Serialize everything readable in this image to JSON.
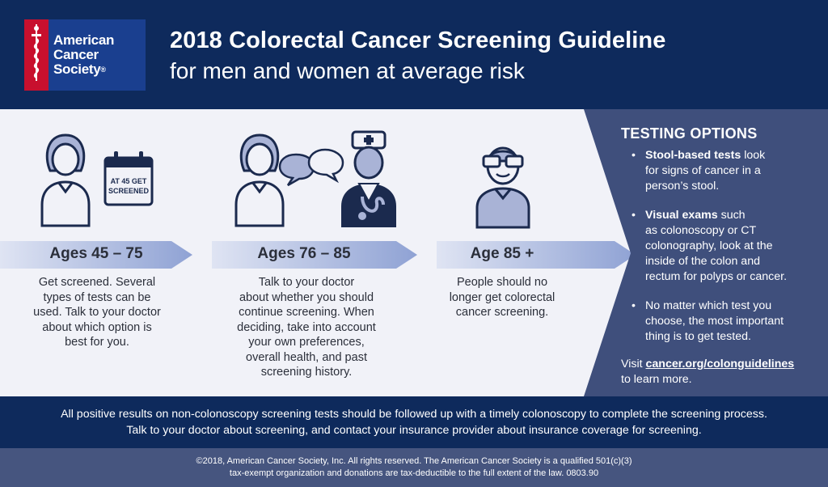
{
  "brand": {
    "name_line1": "American",
    "name_line2": "Cancer",
    "name_line3": "Society",
    "registered": "®"
  },
  "header": {
    "title": "2018 Colorectal Cancer Screening Guideline",
    "subtitle": "for men and women at average risk"
  },
  "stages": [
    {
      "age": "Ages 45 – 75",
      "calendar_text_1": "AT 45 GET",
      "calendar_text_2": "SCREENED",
      "desc_lines": [
        "Get screened. Several",
        "types of tests can be",
        "used. Talk to your doctor",
        "about which option is",
        "best for you."
      ]
    },
    {
      "age": "Ages 76 – 85",
      "desc_lines": [
        "Talk to your doctor",
        "about whether you should",
        "continue screening. When",
        "deciding, take into account",
        "your own preferences,",
        "overall health, and past",
        "screening history."
      ]
    },
    {
      "age": "Age 85 +",
      "desc_lines": [
        "People should no",
        "longer get colorectal",
        "cancer screening."
      ]
    }
  ],
  "testing_options": {
    "title": "TESTING OPTIONS",
    "items": [
      {
        "bold": "Stool-based tests",
        "text_1": " look",
        "text_2": "for signs of cancer in a",
        "text_3": "person’s stool."
      },
      {
        "bold": "Visual exams",
        "text_1": " such",
        "text_2": "as colonoscopy or CT",
        "text_3": "colonography, look at the",
        "text_4": "inside of the colon and",
        "text_5": "rectum for polyps or cancer."
      },
      {
        "text_1": "No matter which test you",
        "text_2": "choose, the most important",
        "text_3": "thing is to get tested."
      }
    ],
    "visit_prefix": "Visit ",
    "visit_link": "cancer.org/colonguidelines",
    "visit_suffix": "to learn more."
  },
  "note": {
    "line1": "All positive results on non-colonoscopy screening tests should be followed up with a timely colonoscopy to complete the screening process.",
    "line2": "Talk to your doctor about screening, and contact your insurance provider about insurance coverage for screening."
  },
  "copyright": {
    "line1": "©2018, American Cancer Society, Inc. All rights reserved. The American Cancer Society is a qualified 501(c)(3)",
    "line2": "tax-exempt organization and donations are tax-deductible to the full extent of the law. 0803.90"
  },
  "colors": {
    "navy": "#0e2a5c",
    "panel": "#3f4f7c",
    "icon_stroke": "#1b2a4e",
    "icon_fill": "#a9b3d6",
    "band": "#b7c3e4",
    "red": "#c8102e"
  }
}
